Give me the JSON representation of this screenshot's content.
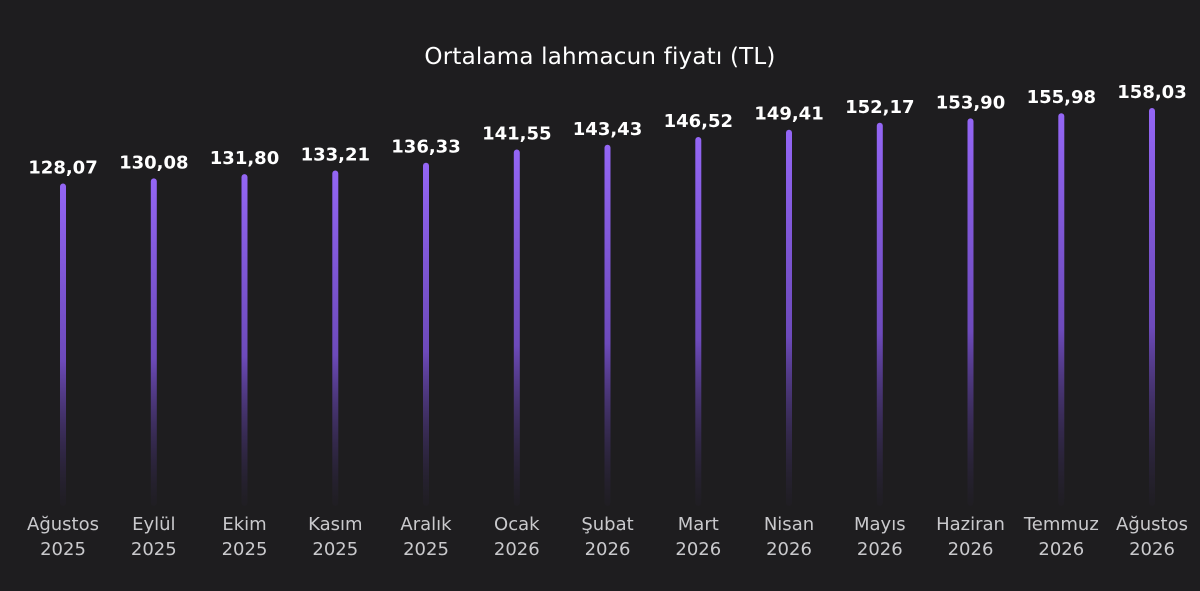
{
  "chart_data": {
    "type": "bar",
    "title": "Ortalama lahmacun fiyatı (TL)",
    "categories": [
      [
        "Ağustos",
        "2025"
      ],
      [
        "Eylül",
        "2025"
      ],
      [
        "Ekim",
        "2025"
      ],
      [
        "Kasım",
        "2025"
      ],
      [
        "Aralık",
        "2025"
      ],
      [
        "Ocak",
        "2026"
      ],
      [
        "Şubat",
        "2026"
      ],
      [
        "Mart",
        "2026"
      ],
      [
        "Nisan",
        "2026"
      ],
      [
        "Mayıs",
        "2026"
      ],
      [
        "Haziran",
        "2026"
      ],
      [
        "Temmuz",
        "2026"
      ],
      [
        "Ağustos",
        "2026"
      ]
    ],
    "values": [
      128.07,
      130.08,
      131.8,
      133.21,
      136.33,
      141.55,
      143.43,
      146.52,
      149.41,
      152.17,
      153.9,
      155.98,
      158.03
    ],
    "value_labels": [
      "128,07",
      "130,08",
      "131,80",
      "133,21",
      "136,33",
      "141,55",
      "143,43",
      "146,52",
      "149,41",
      "152,17",
      "153,90",
      "155,98",
      "158,03"
    ],
    "bar_color": "#8f64ee",
    "background": "#1e1d1f",
    "grid": false,
    "legend": "none"
  }
}
